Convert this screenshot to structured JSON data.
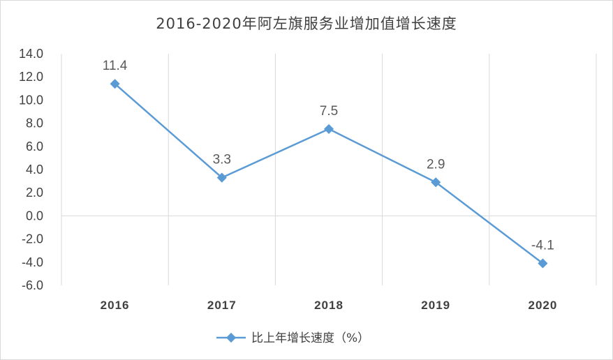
{
  "chart_data": {
    "type": "line",
    "title": "2016-2020年阿左旗服务业增加值增长速度",
    "categories": [
      "2016",
      "2017",
      "2018",
      "2019",
      "2020"
    ],
    "series": [
      {
        "name": "比上年增长速度（%）",
        "values": [
          11.4,
          3.3,
          7.5,
          2.9,
          -4.1
        ]
      }
    ],
    "data_labels": [
      "11.4",
      "3.3",
      "7.5",
      "2.9",
      "-4.1"
    ],
    "yticks": [
      "14.0",
      "12.0",
      "10.0",
      "8.0",
      "6.0",
      "4.0",
      "2.0",
      "0.0",
      "-2.0",
      "-4.0",
      "-6.0"
    ],
    "ylim": [
      -6,
      14
    ],
    "grid": "vertical",
    "legend": "bottom",
    "line_color": "#5b9bd5"
  }
}
